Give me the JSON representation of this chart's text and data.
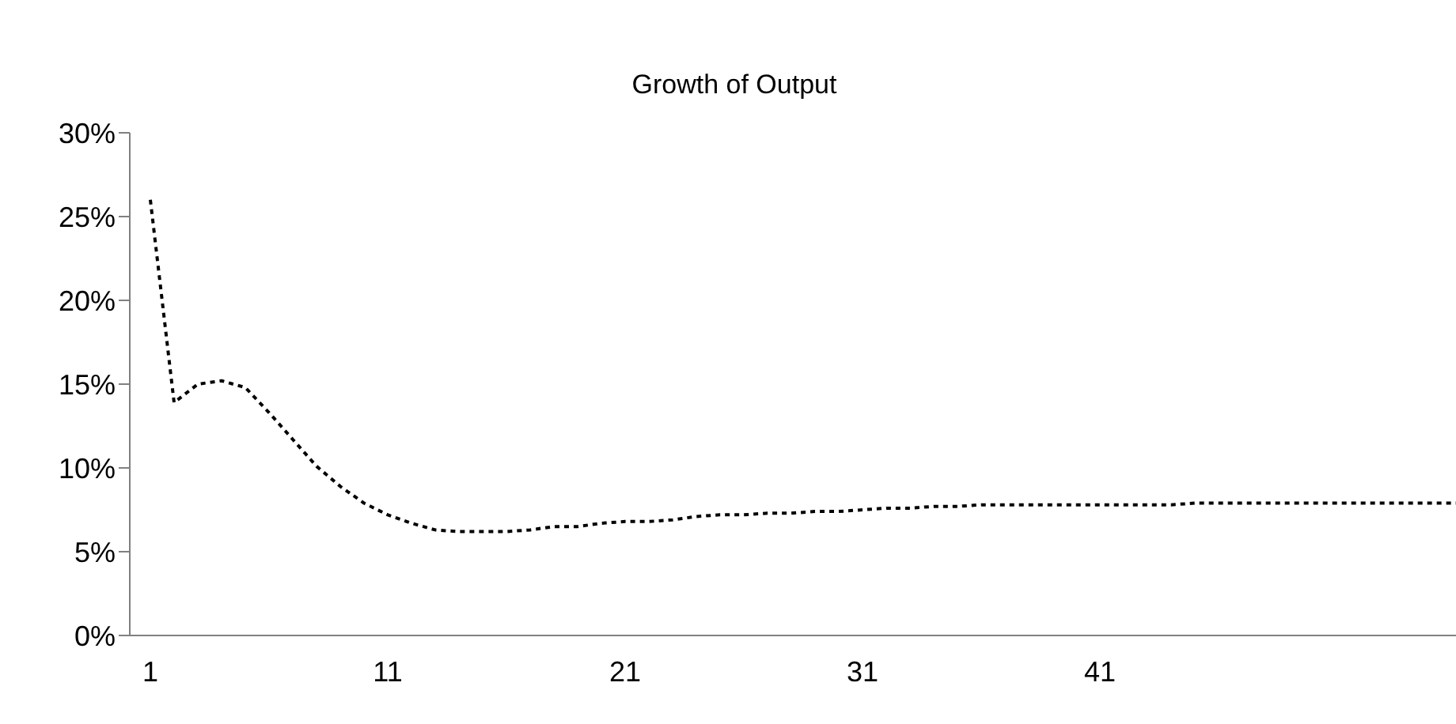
{
  "chart_data": {
    "type": "line",
    "title": "Growth of Output",
    "categories": [
      "1",
      null,
      null,
      null,
      null,
      null,
      null,
      null,
      null,
      null,
      "11",
      null,
      null,
      null,
      null,
      null,
      null,
      null,
      null,
      null,
      "21",
      null,
      null,
      null,
      null,
      null,
      null,
      null,
      null,
      null,
      "31",
      null,
      null,
      null,
      null,
      null,
      null,
      null,
      null,
      null,
      "41",
      null,
      null,
      null,
      null,
      null,
      null,
      null,
      null,
      null,
      null,
      null,
      null,
      null,
      null,
      null
    ],
    "series": [
      {
        "color": "#000000",
        "values": [
          26,
          13.9,
          15,
          15.2,
          14.8,
          13.3,
          11.7,
          10.1,
          8.9,
          7.9,
          7.2,
          6.7,
          6.3,
          6.2,
          6.2,
          6.2,
          6.3,
          6.5,
          6.5,
          6.7,
          6.8,
          6.8,
          6.9,
          7.1,
          7.2,
          7.2,
          7.3,
          7.3,
          7.4,
          7.4,
          7.5,
          7.6,
          7.6,
          7.7,
          7.7,
          7.8,
          7.8,
          7.8,
          7.8,
          7.8,
          7.8,
          7.8,
          7.8,
          7.8,
          7.9,
          7.9,
          7.9,
          7.9,
          7.9,
          7.9,
          7.9,
          7.9,
          7.9,
          7.9,
          7.9,
          7.9
        ]
      }
    ],
    "ylim": [
      0,
      30
    ],
    "yticks": [
      {
        "value": 0,
        "label": "0%"
      },
      {
        "value": 5,
        "label": "5%"
      },
      {
        "value": 10,
        "label": "10%"
      },
      {
        "value": 15,
        "label": "15%"
      },
      {
        "value": 20,
        "label": "20%"
      },
      {
        "value": 25,
        "label": "25%"
      },
      {
        "value": 30,
        "label": "30%"
      }
    ],
    "grid": false,
    "legend": false,
    "marker": "none",
    "line_style": "dashed"
  }
}
